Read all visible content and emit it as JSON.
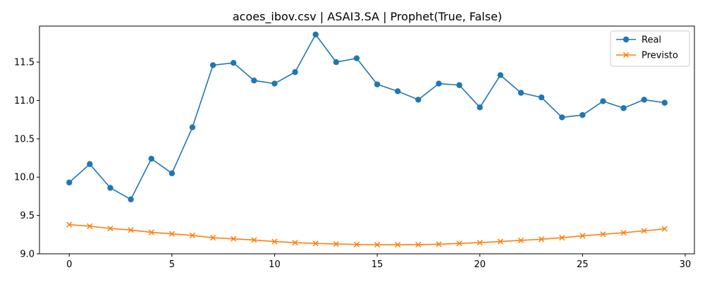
{
  "chart_data": {
    "type": "line",
    "title": "acoes_ibov.csv | ASAI3.SA | Prophet(True, False)",
    "xlabel": "",
    "ylabel": "",
    "xlim": [
      -1.45,
      30.45
    ],
    "ylim": [
      9.0,
      11.97
    ],
    "xticks": [
      0,
      5,
      10,
      15,
      20,
      25,
      30
    ],
    "yticks": [
      9.0,
      9.5,
      10.0,
      10.5,
      11.0,
      11.5
    ],
    "grid": false,
    "legend_position": "top-right",
    "x": [
      0,
      1,
      2,
      3,
      4,
      5,
      6,
      7,
      8,
      9,
      10,
      11,
      12,
      13,
      14,
      15,
      16,
      17,
      18,
      19,
      20,
      21,
      22,
      23,
      24,
      25,
      26,
      27,
      28,
      29
    ],
    "series": [
      {
        "name": "Real",
        "color": "#1f77b4",
        "marker": "circle",
        "values": [
          9.93,
          10.17,
          9.86,
          9.71,
          10.24,
          10.05,
          10.65,
          11.46,
          11.49,
          11.26,
          11.22,
          11.37,
          11.86,
          11.5,
          11.55,
          11.21,
          11.12,
          11.01,
          11.22,
          11.2,
          10.91,
          11.33,
          11.1,
          11.04,
          10.78,
          10.81,
          10.99,
          10.9,
          11.01,
          10.97
        ]
      },
      {
        "name": "Previsto",
        "color": "#ff7f0e",
        "marker": "x",
        "values": [
          9.38,
          9.36,
          9.33,
          9.31,
          9.28,
          9.26,
          9.24,
          9.21,
          9.195,
          9.18,
          9.16,
          9.145,
          9.135,
          9.128,
          9.122,
          9.118,
          9.118,
          9.12,
          9.125,
          9.135,
          9.145,
          9.16,
          9.175,
          9.19,
          9.21,
          9.235,
          9.255,
          9.275,
          9.3,
          9.325
        ]
      }
    ]
  }
}
